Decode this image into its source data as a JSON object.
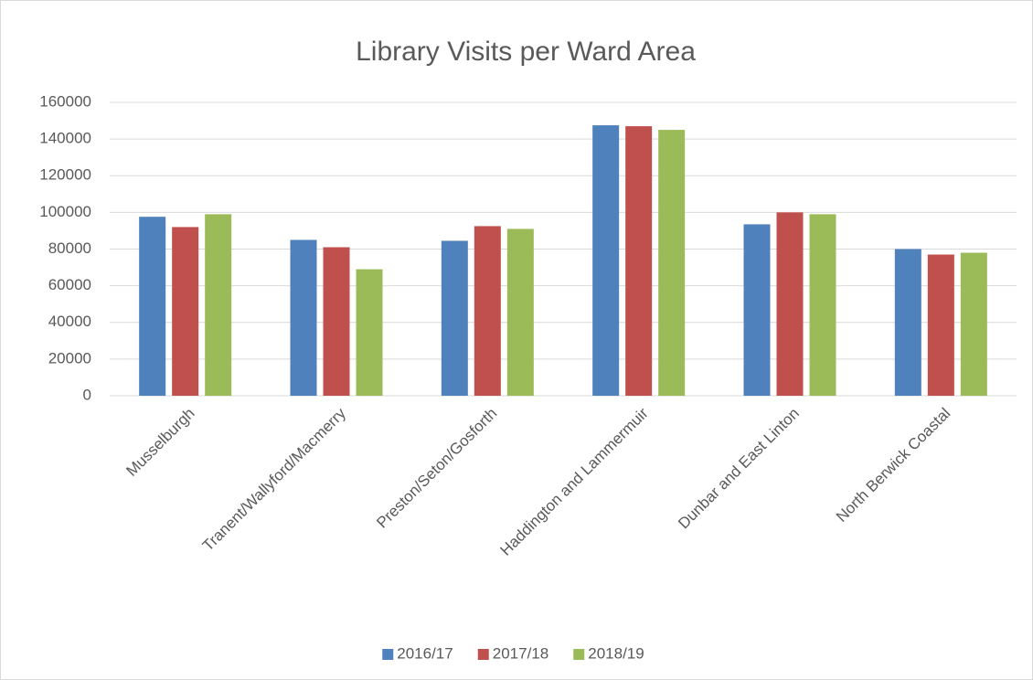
{
  "chart_data": {
    "type": "bar",
    "title": "Library Visits per Ward Area",
    "categories": [
      "Musselburgh",
      "Tranent/Wallyford/Macmerry",
      "Preston/Seton/Gosforth",
      "Haddington and Lammermuir",
      "Dunbar and East Linton",
      "North Berwick Coastal"
    ],
    "series": [
      {
        "name": "2016/17",
        "color": "#4f81bd",
        "values": [
          97600,
          85000,
          84500,
          147500,
          93500,
          80000
        ]
      },
      {
        "name": "2017/18",
        "color": "#c0504d",
        "values": [
          92000,
          81000,
          92500,
          147000,
          100000,
          77000
        ]
      },
      {
        "name": "2018/19",
        "color": "#9bbb59",
        "values": [
          99000,
          69000,
          91000,
          145000,
          99000,
          78000
        ]
      }
    ],
    "ylim": [
      0,
      160000
    ],
    "yticks": [
      0,
      20000,
      40000,
      60000,
      80000,
      100000,
      120000,
      140000,
      160000
    ],
    "grid": true,
    "legend": "bottom"
  }
}
